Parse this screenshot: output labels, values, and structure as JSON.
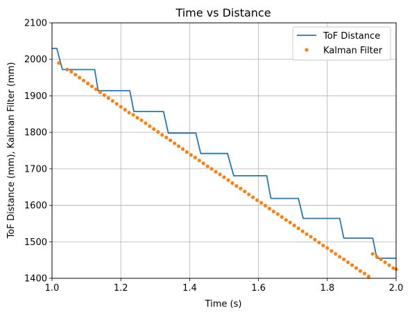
{
  "chart_data": {
    "type": "line",
    "title": "Time vs Distance",
    "xlabel": "Time (s)",
    "ylabel": "ToF Distance (mm), Kalman Filter (mm)",
    "xlim": [
      1.0,
      2.0
    ],
    "ylim": [
      1400,
      2100
    ],
    "xticks": [
      1.0,
      1.2,
      1.4,
      1.6,
      1.8,
      2.0
    ],
    "xtick_labels": [
      "1.0",
      "1.2",
      "1.4",
      "1.6",
      "1.8",
      "2.0"
    ],
    "yticks": [
      1400,
      1500,
      1600,
      1700,
      1800,
      1900,
      2000,
      2100
    ],
    "ytick_labels": [
      "1400",
      "1500",
      "1600",
      "1700",
      "1800",
      "1900",
      "2000",
      "2100"
    ],
    "grid": true,
    "legend": "top-right",
    "series": [
      {
        "name": "ToF Distance",
        "kind": "line",
        "color": "#1f77b4",
        "x": [
          1.0,
          1.014,
          1.03,
          1.124,
          1.134,
          1.226,
          1.238,
          1.324,
          1.338,
          1.418,
          1.432,
          1.51,
          1.528,
          1.624,
          1.636,
          1.716,
          1.73,
          1.836,
          1.848,
          1.932,
          1.944,
          2.0
        ],
        "y": [
          2030,
          2030,
          1972,
          1972,
          1914,
          1914,
          1857,
          1857,
          1798,
          1798,
          1742,
          1742,
          1681,
          1681,
          1619,
          1619,
          1564,
          1564,
          1510,
          1510,
          1455,
          1455
        ]
      },
      {
        "name": "Kalman Filter",
        "kind": "scatter",
        "color": "#ff7f0e",
        "x": [
          1.02,
          1.044,
          1.056,
          1.068,
          1.08,
          1.092,
          1.104,
          1.116,
          1.128,
          1.14,
          1.152,
          1.164,
          1.176,
          1.188,
          1.2,
          1.212,
          1.224,
          1.236,
          1.248,
          1.26,
          1.272,
          1.284,
          1.296,
          1.308,
          1.32,
          1.332,
          1.344,
          1.356,
          1.368,
          1.38,
          1.392,
          1.404,
          1.416,
          1.428,
          1.44,
          1.452,
          1.464,
          1.476,
          1.488,
          1.5,
          1.512,
          1.524,
          1.536,
          1.548,
          1.56,
          1.572,
          1.584,
          1.596,
          1.608,
          1.62,
          1.632,
          1.644,
          1.656,
          1.668,
          1.68,
          1.692,
          1.704,
          1.716,
          1.728,
          1.74,
          1.752,
          1.764,
          1.776,
          1.788,
          1.8,
          1.812,
          1.824,
          1.836,
          1.848,
          1.86,
          1.872,
          1.884,
          1.896,
          1.908,
          1.92,
          1.932,
          1.944,
          1.956,
          1.968,
          1.98,
          1.992,
          2.0
        ],
        "y": [
          1990,
          1972,
          1966,
          1958,
          1950,
          1942,
          1934,
          1926,
          1918,
          1910,
          1902,
          1894,
          1886,
          1878,
          1870,
          1862,
          1854,
          1848,
          1840,
          1833,
          1825,
          1817,
          1809,
          1801,
          1793,
          1786,
          1778,
          1770,
          1762,
          1754,
          1746,
          1738,
          1731,
          1723,
          1715,
          1707,
          1700,
          1692,
          1685,
          1677,
          1669,
          1661,
          1653,
          1646,
          1638,
          1630,
          1622,
          1614,
          1607,
          1599,
          1591,
          1583,
          1576,
          1568,
          1560,
          1553,
          1545,
          1537,
          1529,
          1521,
          1514,
          1506,
          1498,
          1490,
          1483,
          1475,
          1467,
          1459,
          1452,
          1444,
          1436,
          1428,
          1420,
          1413,
          1405,
          1467,
          1459,
          1452,
          1444,
          1436,
          1428,
          1425
        ]
      }
    ]
  }
}
